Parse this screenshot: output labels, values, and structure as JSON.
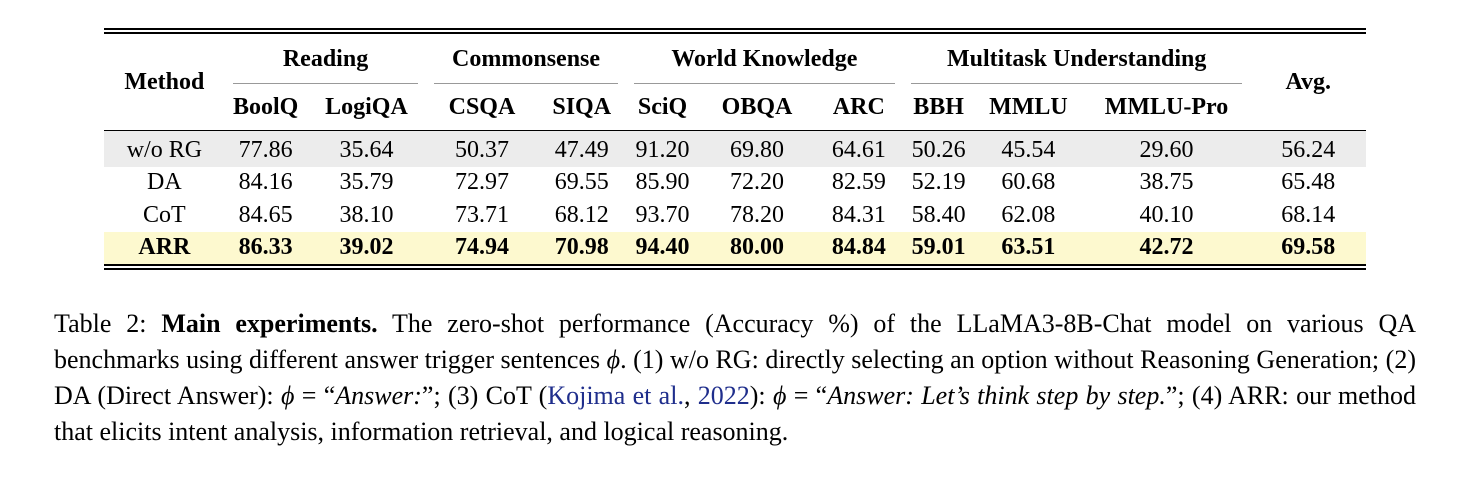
{
  "table": {
    "method_header": "Method",
    "avg_header": "Avg.",
    "groups": [
      {
        "label": "Reading",
        "cols": [
          "BoolQ",
          "LogiQA"
        ]
      },
      {
        "label": "Commonsense",
        "cols": [
          "CSQA",
          "SIQA"
        ]
      },
      {
        "label": "World Knowledge",
        "cols": [
          "SciQ",
          "OBQA",
          "ARC"
        ]
      },
      {
        "label": "Multitask Understanding",
        "cols": [
          "BBH",
          "MMLU",
          "MMLU-Pro"
        ]
      }
    ],
    "rows": [
      {
        "method": "w/o RG",
        "values": [
          "77.86",
          "35.64",
          "50.37",
          "47.49",
          "91.20",
          "69.80",
          "64.61",
          "50.26",
          "45.54",
          "29.60"
        ],
        "avg": "56.24"
      },
      {
        "method": "DA",
        "values": [
          "84.16",
          "35.79",
          "72.97",
          "69.55",
          "85.90",
          "72.20",
          "82.59",
          "52.19",
          "60.68",
          "38.75"
        ],
        "avg": "65.48"
      },
      {
        "method": "CoT",
        "values": [
          "84.65",
          "38.10",
          "73.71",
          "68.12",
          "93.70",
          "78.20",
          "84.31",
          "58.40",
          "62.08",
          "40.10"
        ],
        "avg": "68.14"
      },
      {
        "method": "ARR",
        "values": [
          "86.33",
          "39.02",
          "74.94",
          "70.98",
          "94.40",
          "80.00",
          "84.84",
          "59.01",
          "63.51",
          "42.72"
        ],
        "avg": "69.58"
      }
    ],
    "colors": {
      "gray_row": "#ececec",
      "highlight_row": "#fdf9cf",
      "citation": "#1f2e8c"
    }
  },
  "caption": {
    "label": "Table 2: ",
    "title": "Main experiments.",
    "p1": " The zero-shot performance (Accuracy %) of the LLaMA3-8B-Chat model on various QA benchmarks using different answer trigger sentences ",
    "phi": "ϕ",
    "p2": ". (1) w/o RG: directly selecting an option without Reasoning Generation; (2) DA (Direct Answer): ",
    "eq": " = “",
    "da_text": "Answer:",
    "p3": "”; (3) CoT (",
    "cite_author": "Kojima et al.",
    "cite_sep": ", ",
    "cite_year": "2022",
    "p4": "): ",
    "cot_text": "Answer: Let’s think step by step.",
    "p5": "”; (4) ARR: our method that elicits intent analysis, information retrieval, and logical reasoning."
  }
}
